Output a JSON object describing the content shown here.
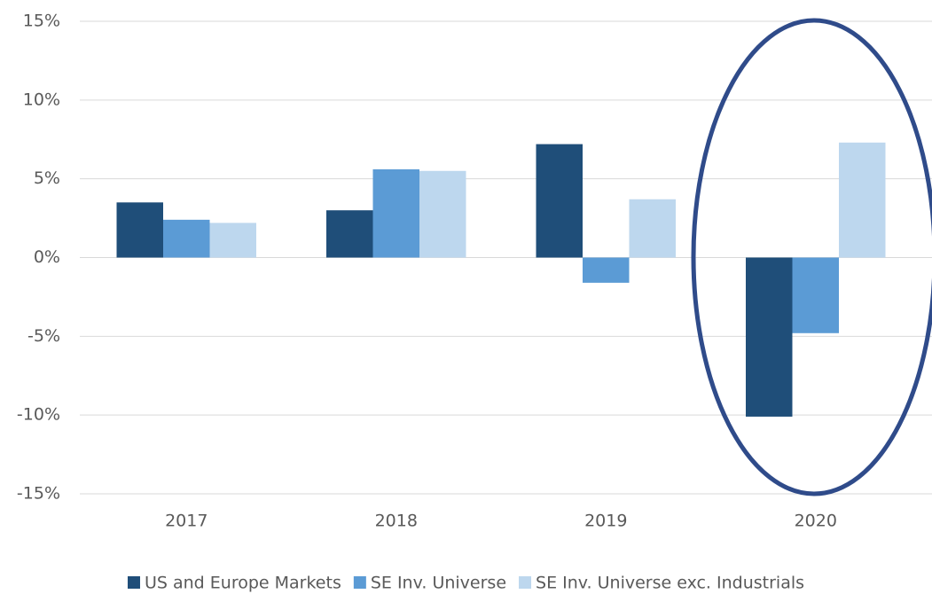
{
  "chart_data": {
    "type": "bar",
    "categories": [
      "2017",
      "2018",
      "2019",
      "2020"
    ],
    "series": [
      {
        "name": "US and Europe Markets",
        "color": "#1f4e79",
        "values": [
          3.5,
          3.0,
          7.2,
          -10.1
        ]
      },
      {
        "name": "SE Inv. Universe",
        "color": "#5b9bd5",
        "values": [
          2.4,
          5.6,
          -1.6,
          -4.8
        ]
      },
      {
        "name": "SE Inv. Universe exc. Industrials",
        "color": "#bdd7ee",
        "values": [
          2.2,
          5.5,
          3.7,
          7.3
        ]
      }
    ],
    "ylim": [
      -15,
      15
    ],
    "yticks": [
      {
        "value": -15,
        "label": "-15%"
      },
      {
        "value": -10,
        "label": "-10%"
      },
      {
        "value": -5,
        "label": "-5%"
      },
      {
        "value": 0,
        "label": "0%"
      },
      {
        "value": 5,
        "label": "5%"
      },
      {
        "value": 10,
        "label": "10%"
      },
      {
        "value": 15,
        "label": "15%"
      }
    ],
    "grid": true,
    "legend": "bottom"
  }
}
